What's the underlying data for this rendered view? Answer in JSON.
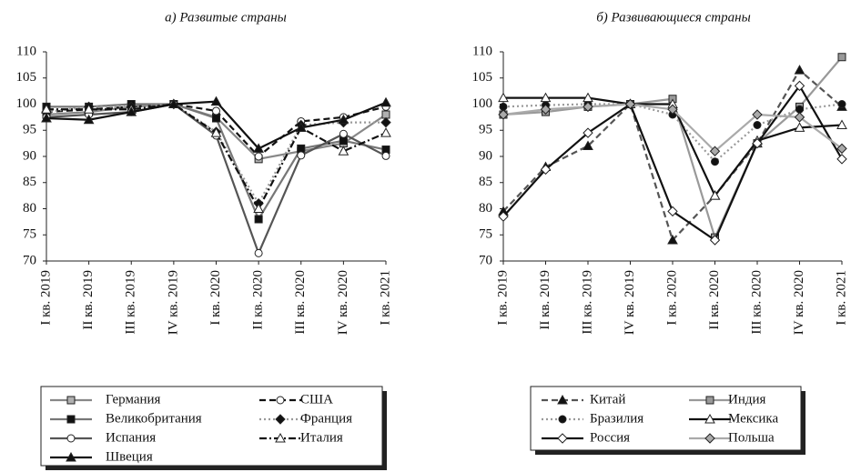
{
  "chart_data": [
    {
      "type": "line",
      "title": "а) Развитые страны",
      "categories": [
        "I кв. 2019",
        "II кв. 2019",
        "III кв. 2019",
        "IV кв. 2019",
        "I кв. 2020",
        "II кв. 2020",
        "III кв. 2020",
        "IV кв. 2020",
        "I кв. 2021"
      ],
      "ylim": [
        70,
        110
      ],
      "yticks": [
        70,
        75,
        80,
        85,
        90,
        95,
        100,
        105,
        110
      ],
      "grid": false,
      "series": [
        {
          "name": "Германия",
          "color": "#888888",
          "dash": "solid",
          "marker": "square",
          "marker_fill": "#b0b0b0",
          "values": [
            98,
            98.5,
            99.5,
            100,
            97.5,
            89.5,
            91,
            92.5,
            98
          ]
        },
        {
          "name": "США",
          "color": "#111111",
          "dash": "dashed",
          "marker": "circle",
          "marker_fill": "#ffffff",
          "values": [
            98.5,
            99,
            99.5,
            100,
            98.7,
            90,
            96.7,
            97.5,
            99.5
          ]
        },
        {
          "name": "Великобритания",
          "color": "#777777",
          "dash": "solid",
          "marker": "square",
          "marker_fill": "#111111",
          "values": [
            99.5,
            99.5,
            100,
            100,
            97.3,
            78,
            91.5,
            93,
            91.3
          ]
        },
        {
          "name": "Франция",
          "color": "#999999",
          "dash": "dotted",
          "marker": "diamond",
          "marker_fill": "#111111",
          "values": [
            98.5,
            99.5,
            99.5,
            100,
            94.7,
            81,
            96,
            96.5,
            96.5
          ]
        },
        {
          "name": "Испания",
          "color": "#555555",
          "dash": "solid",
          "marker": "circle",
          "marker_fill": "#ffffff",
          "values": [
            97.5,
            98,
            98.5,
            100,
            94,
            71.5,
            90.2,
            94.3,
            90.1
          ]
        },
        {
          "name": "Италия",
          "color": "#111111",
          "dash": "dashdot",
          "marker": "triangle",
          "marker_fill": "#ffffff",
          "values": [
            99,
            99,
            99,
            100,
            94.5,
            80,
            95.5,
            91,
            94.5
          ]
        },
        {
          "name": "Швеция",
          "color": "#111111",
          "dash": "solid",
          "marker": "triangle",
          "marker_fill": "#111111",
          "values": [
            97.3,
            97,
            98.5,
            100,
            100.5,
            91.5,
            95.5,
            97,
            100.3
          ]
        }
      ]
    },
    {
      "type": "line",
      "title": "б) Развивающиеся страны",
      "categories": [
        "I кв. 2019",
        "II кв. 2019",
        "III кв. 2019",
        "IV кв. 2019",
        "I кв. 2020",
        "II кв. 2020",
        "III кв. 2020",
        "IV кв. 2020",
        "I кв. 2021"
      ],
      "ylim": [
        70,
        110
      ],
      "yticks": [
        70,
        75,
        80,
        85,
        90,
        95,
        100,
        105,
        110
      ],
      "grid": false,
      "series": [
        {
          "name": "Китай",
          "color": "#555555",
          "dash": "dashed",
          "marker": "triangle",
          "marker_fill": "#111111",
          "values": [
            79.5,
            88,
            92,
            100,
            74,
            82.5,
            92.5,
            106.5,
            99.5
          ]
        },
        {
          "name": "Индия",
          "color": "#999999",
          "dash": "solid",
          "marker": "square",
          "marker_fill": "#999999",
          "values": [
            98,
            98.5,
            99.5,
            100,
            101,
            74.5,
            92.5,
            99.5,
            109
          ]
        },
        {
          "name": "Бразилия",
          "color": "#999999",
          "dash": "dotted",
          "marker": "circle",
          "marker_fill": "#111111",
          "values": [
            99.5,
            99.8,
            100,
            100,
            98,
            89,
            96,
            99,
            100
          ]
        },
        {
          "name": "Мексика",
          "color": "#111111",
          "dash": "solid",
          "marker": "triangle",
          "marker_fill": "#ffffff",
          "values": [
            101.2,
            101.2,
            101.2,
            100,
            100,
            82.5,
            93,
            95.5,
            96
          ]
        },
        {
          "name": "Россия",
          "color": "#111111",
          "dash": "solid",
          "marker": "diamond",
          "marker_fill": "#ffffff",
          "values": [
            78.5,
            87.5,
            94.5,
            100,
            79.5,
            74,
            92.5,
            103.5,
            89.5
          ]
        },
        {
          "name": "Польша",
          "color": "#aaaaaa",
          "dash": "solid",
          "marker": "diamond",
          "marker_fill": "#aaaaaa",
          "values": [
            98,
            99,
            99.5,
            100,
            99,
            91,
            98,
            97.5,
            91.5
          ]
        }
      ]
    }
  ]
}
